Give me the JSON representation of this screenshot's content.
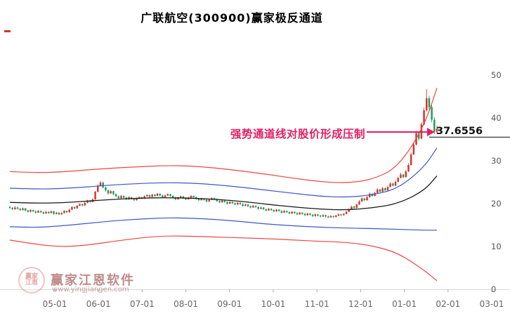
{
  "title": "广联航空(300900)赢家极反通道",
  "annotation": {
    "text": "强势通道线对股价形成压制",
    "value_label": "37.6556",
    "color": "#e11f63"
  },
  "watermark": {
    "brand": "赢家江恩软件",
    "url": "www.yingjiangen.com",
    "logo_line1": "赢家",
    "logo_line2": "江恩"
  },
  "colors": {
    "up": "#d63429",
    "down": "#16a15a",
    "channel_red": "#ef4444",
    "channel_blue": "#3c55cc",
    "channel_center": "#1a1a1a",
    "axis_text": "#555555"
  },
  "chart_data": {
    "type": "candlestick",
    "title": "广联航空(300900)赢家极反通道",
    "ylim": [
      0,
      55
    ],
    "y_ticks": [
      50,
      40,
      30,
      20,
      10,
      0
    ],
    "x_tick_labels": [
      "05-01",
      "06-01",
      "07-01",
      "08-01",
      "09-01",
      "10-01",
      "11-01",
      "12-01",
      "01-01",
      "02-01",
      "03-01"
    ],
    "pressure_level": 37.6556,
    "candles": [
      [
        19.2,
        19.5,
        18.8,
        19.0
      ],
      [
        19.0,
        19.2,
        18.5,
        18.7
      ],
      [
        18.7,
        19.4,
        18.6,
        19.1
      ],
      [
        19.1,
        19.3,
        18.6,
        18.8
      ],
      [
        18.8,
        19.0,
        18.3,
        18.5
      ],
      [
        18.5,
        19.1,
        18.4,
        18.9
      ],
      [
        18.9,
        19.0,
        18.2,
        18.4
      ],
      [
        18.4,
        18.6,
        17.9,
        18.1
      ],
      [
        18.1,
        18.7,
        18.0,
        18.5
      ],
      [
        18.5,
        18.6,
        18.0,
        18.2
      ],
      [
        18.2,
        18.4,
        17.7,
        17.9
      ],
      [
        17.9,
        18.5,
        17.8,
        18.3
      ],
      [
        18.3,
        18.4,
        17.8,
        18.0
      ],
      [
        18.0,
        18.2,
        17.5,
        17.7
      ],
      [
        17.7,
        18.3,
        17.6,
        18.1
      ],
      [
        18.1,
        18.2,
        17.6,
        17.8
      ],
      [
        17.8,
        18.4,
        17.7,
        18.2
      ],
      [
        18.2,
        18.3,
        17.4,
        17.6
      ],
      [
        17.6,
        18.1,
        17.5,
        17.9
      ],
      [
        17.9,
        18.0,
        17.3,
        17.5
      ],
      [
        17.5,
        18.0,
        17.4,
        17.8
      ],
      [
        17.8,
        18.5,
        17.7,
        18.3
      ],
      [
        18.3,
        18.4,
        17.8,
        18.0
      ],
      [
        18.0,
        18.8,
        17.9,
        18.6
      ],
      [
        18.6,
        19.4,
        18.5,
        19.2
      ],
      [
        19.2,
        19.3,
        18.7,
        18.9
      ],
      [
        18.9,
        19.7,
        18.8,
        19.5
      ],
      [
        19.5,
        20.1,
        19.4,
        19.9
      ],
      [
        19.9,
        20.0,
        19.4,
        19.6
      ],
      [
        19.6,
        20.4,
        19.5,
        20.2
      ],
      [
        20.2,
        20.9,
        20.1,
        20.7
      ],
      [
        20.7,
        20.8,
        20.2,
        20.4
      ],
      [
        20.4,
        21.2,
        20.3,
        21.0
      ],
      [
        21.0,
        23.0,
        20.9,
        22.8
      ],
      [
        22.8,
        24.5,
        22.6,
        24.2
      ],
      [
        24.2,
        25.3,
        24.0,
        24.9
      ],
      [
        24.9,
        25.1,
        23.5,
        23.8
      ],
      [
        23.8,
        24.0,
        22.8,
        23.1
      ],
      [
        23.1,
        23.3,
        22.1,
        22.4
      ],
      [
        22.4,
        23.2,
        22.3,
        22.9
      ],
      [
        22.9,
        23.0,
        22.0,
        22.2
      ],
      [
        22.2,
        22.4,
        21.5,
        21.7
      ],
      [
        21.7,
        21.9,
        21.1,
        21.3
      ],
      [
        21.3,
        22.0,
        21.2,
        21.8
      ],
      [
        21.8,
        21.9,
        21.2,
        21.4
      ],
      [
        21.4,
        21.6,
        20.8,
        21.0
      ],
      [
        21.0,
        21.7,
        20.9,
        21.5
      ],
      [
        21.5,
        21.6,
        20.9,
        21.1
      ],
      [
        21.1,
        21.3,
        20.6,
        20.8
      ],
      [
        20.8,
        21.4,
        20.7,
        21.2
      ],
      [
        21.2,
        21.7,
        21.1,
        21.5
      ],
      [
        21.5,
        21.6,
        21.0,
        21.2
      ],
      [
        21.2,
        21.9,
        21.1,
        21.7
      ],
      [
        21.7,
        22.2,
        21.6,
        22.0
      ],
      [
        22.0,
        22.1,
        21.4,
        21.6
      ],
      [
        21.6,
        22.3,
        21.5,
        22.1
      ],
      [
        22.1,
        22.2,
        21.6,
        21.8
      ],
      [
        21.8,
        22.5,
        21.7,
        22.3
      ],
      [
        22.3,
        22.4,
        21.7,
        21.9
      ],
      [
        21.9,
        22.1,
        21.3,
        21.5
      ],
      [
        21.5,
        22.1,
        21.4,
        21.9
      ],
      [
        21.9,
        22.4,
        21.8,
        22.2
      ],
      [
        22.2,
        22.3,
        21.6,
        21.8
      ],
      [
        21.8,
        22.0,
        21.2,
        21.4
      ],
      [
        21.4,
        21.6,
        20.8,
        21.0
      ],
      [
        21.0,
        21.6,
        20.9,
        21.4
      ],
      [
        21.4,
        21.9,
        21.3,
        21.7
      ],
      [
        21.7,
        21.8,
        21.1,
        21.3
      ],
      [
        21.3,
        21.5,
        20.8,
        21.0
      ],
      [
        21.0,
        21.6,
        20.9,
        21.4
      ],
      [
        21.4,
        22.0,
        21.3,
        21.8
      ],
      [
        21.8,
        21.9,
        21.3,
        21.5
      ],
      [
        21.5,
        21.7,
        20.9,
        21.1
      ],
      [
        21.1,
        21.3,
        20.6,
        20.8
      ],
      [
        20.8,
        21.4,
        20.7,
        21.2
      ],
      [
        21.2,
        21.3,
        20.7,
        20.9
      ],
      [
        20.9,
        21.1,
        20.3,
        20.5
      ],
      [
        20.5,
        21.1,
        20.4,
        20.9
      ],
      [
        20.9,
        21.5,
        20.8,
        21.3
      ],
      [
        21.3,
        21.4,
        20.8,
        21.0
      ],
      [
        21.0,
        21.2,
        20.4,
        20.6
      ],
      [
        20.6,
        20.8,
        20.1,
        20.3
      ],
      [
        20.3,
        20.9,
        20.2,
        20.7
      ],
      [
        20.7,
        20.8,
        20.2,
        20.4
      ],
      [
        20.4,
        20.6,
        19.8,
        20.0
      ],
      [
        20.0,
        20.6,
        19.9,
        20.4
      ],
      [
        20.4,
        20.5,
        19.9,
        20.1
      ],
      [
        20.1,
        20.3,
        19.6,
        19.8
      ],
      [
        19.8,
        20.4,
        19.7,
        20.2
      ],
      [
        20.2,
        20.3,
        19.7,
        19.9
      ],
      [
        19.9,
        20.1,
        19.3,
        19.5
      ],
      [
        19.5,
        20.0,
        19.4,
        19.8
      ],
      [
        19.8,
        19.9,
        19.2,
        19.4
      ],
      [
        19.4,
        19.6,
        18.9,
        19.1
      ],
      [
        19.1,
        19.7,
        19.0,
        19.5
      ],
      [
        19.5,
        19.6,
        19.0,
        19.2
      ],
      [
        19.2,
        19.4,
        18.6,
        18.8
      ],
      [
        18.8,
        19.3,
        18.7,
        19.1
      ],
      [
        19.1,
        19.2,
        18.5,
        18.7
      ],
      [
        18.7,
        18.9,
        18.2,
        18.4
      ],
      [
        18.4,
        19.0,
        18.3,
        18.8
      ],
      [
        18.8,
        18.9,
        18.3,
        18.5
      ],
      [
        18.5,
        18.7,
        18.0,
        18.2
      ],
      [
        18.2,
        18.8,
        18.1,
        18.6
      ],
      [
        18.6,
        18.7,
        18.1,
        18.3
      ],
      [
        18.3,
        18.5,
        17.7,
        17.9
      ],
      [
        17.9,
        18.5,
        17.8,
        18.3
      ],
      [
        18.3,
        18.4,
        17.8,
        18.0
      ],
      [
        18.0,
        18.2,
        17.5,
        17.7
      ],
      [
        17.7,
        18.3,
        17.6,
        18.1
      ],
      [
        18.1,
        18.2,
        17.6,
        17.8
      ],
      [
        17.8,
        18.0,
        17.3,
        17.5
      ],
      [
        17.5,
        18.1,
        17.4,
        17.9
      ],
      [
        17.9,
        18.0,
        17.4,
        17.6
      ],
      [
        17.6,
        17.8,
        17.1,
        17.3
      ],
      [
        17.3,
        17.9,
        17.2,
        17.7
      ],
      [
        17.7,
        17.8,
        17.2,
        17.4
      ],
      [
        17.4,
        17.6,
        16.9,
        17.1
      ],
      [
        17.1,
        17.7,
        17.0,
        17.5
      ],
      [
        17.5,
        17.6,
        17.0,
        17.2
      ],
      [
        17.2,
        17.4,
        16.8,
        17.0
      ],
      [
        17.0,
        17.5,
        16.9,
        17.3
      ],
      [
        17.3,
        17.4,
        16.8,
        17.0
      ],
      [
        17.0,
        17.2,
        16.6,
        16.8
      ],
      [
        16.8,
        17.3,
        16.7,
        17.1
      ],
      [
        17.1,
        17.2,
        16.7,
        16.9
      ],
      [
        16.9,
        17.4,
        16.8,
        17.2
      ],
      [
        17.2,
        17.7,
        17.1,
        17.5
      ],
      [
        17.5,
        17.6,
        17.1,
        17.3
      ],
      [
        17.3,
        17.8,
        17.2,
        17.6
      ],
      [
        17.6,
        18.3,
        17.5,
        18.1
      ],
      [
        18.1,
        18.9,
        18.0,
        18.7
      ],
      [
        18.7,
        19.5,
        18.6,
        19.3
      ],
      [
        19.3,
        19.5,
        18.8,
        19.0
      ],
      [
        19.0,
        20.0,
        18.9,
        19.8
      ],
      [
        19.8,
        20.8,
        19.7,
        20.5
      ],
      [
        20.5,
        21.5,
        20.4,
        21.2
      ],
      [
        21.2,
        21.4,
        20.6,
        20.8
      ],
      [
        20.8,
        21.8,
        20.7,
        21.5
      ],
      [
        21.5,
        22.6,
        21.4,
        22.3
      ],
      [
        22.3,
        22.5,
        21.6,
        21.8
      ],
      [
        21.8,
        22.8,
        21.7,
        22.5
      ],
      [
        22.5,
        23.6,
        22.4,
        23.3
      ],
      [
        23.3,
        23.5,
        22.6,
        22.8
      ],
      [
        22.8,
        23.9,
        22.7,
        23.6
      ],
      [
        23.6,
        23.8,
        22.9,
        23.1
      ],
      [
        23.1,
        24.2,
        23.0,
        23.9
      ],
      [
        23.9,
        25.0,
        23.8,
        24.7
      ],
      [
        24.7,
        24.9,
        24.0,
        24.2
      ],
      [
        24.2,
        25.4,
        24.1,
        25.1
      ],
      [
        25.1,
        26.3,
        25.0,
        26.0
      ],
      [
        26.0,
        27.2,
        25.9,
        26.8
      ],
      [
        26.8,
        27.0,
        25.9,
        26.2
      ],
      [
        26.2,
        27.9,
        26.1,
        27.5
      ],
      [
        27.5,
        29.4,
        27.4,
        29.0
      ],
      [
        29.0,
        31.9,
        28.9,
        31.5
      ],
      [
        31.5,
        34.3,
        31.3,
        33.8
      ],
      [
        33.8,
        37.0,
        33.6,
        36.5
      ],
      [
        36.5,
        36.9,
        34.7,
        35.2
      ],
      [
        35.2,
        39.0,
        35.0,
        38.5
      ],
      [
        38.5,
        42.4,
        38.3,
        41.8
      ],
      [
        41.8,
        46.7,
        41.5,
        44.6
      ],
      [
        44.6,
        45.2,
        41.8,
        42.5
      ],
      [
        42.5,
        43.0,
        39.0,
        39.6
      ],
      [
        39.6,
        40.2,
        36.2,
        36.8
      ],
      [
        36.8,
        38.2,
        36.3,
        37.5
      ]
    ],
    "channel_idx": [
      0,
      10,
      20,
      30,
      40,
      50,
      60,
      70,
      80,
      90,
      100,
      110,
      120,
      130,
      140,
      150,
      160,
      165
    ],
    "channel_lines": {
      "upper_red": [
        27.5,
        27.2,
        27.4,
        27.9,
        28.3,
        28.6,
        28.9,
        28.8,
        28.3,
        27.6,
        26.8,
        25.9,
        25.1,
        24.8,
        25.6,
        28.5,
        38.0,
        47.0
      ],
      "upper_blue": [
        23.6,
        23.4,
        23.5,
        23.9,
        24.4,
        24.7,
        24.9,
        24.8,
        24.4,
        23.8,
        23.1,
        22.4,
        21.7,
        21.5,
        22.0,
        23.5,
        28.5,
        33.0
      ],
      "center": [
        20.3,
        20.1,
        20.2,
        20.6,
        21.0,
        21.3,
        21.4,
        21.3,
        21.0,
        20.5,
        19.8,
        19.2,
        18.7,
        18.5,
        19.0,
        20.0,
        23.0,
        26.5
      ],
      "lower_blue": [
        14.6,
        14.4,
        14.8,
        15.4,
        16.0,
        16.4,
        16.7,
        16.6,
        16.3,
        15.8,
        15.2,
        14.8,
        14.5,
        14.3,
        14.2,
        14.0,
        13.8,
        13.8
      ],
      "lower_red": [
        11.5,
        10.5,
        9.9,
        10.3,
        11.2,
        12.0,
        12.5,
        12.4,
        12.2,
        12.0,
        11.8,
        11.5,
        11.2,
        11.0,
        10.2,
        8.5,
        4.5,
        2.0
      ]
    }
  }
}
